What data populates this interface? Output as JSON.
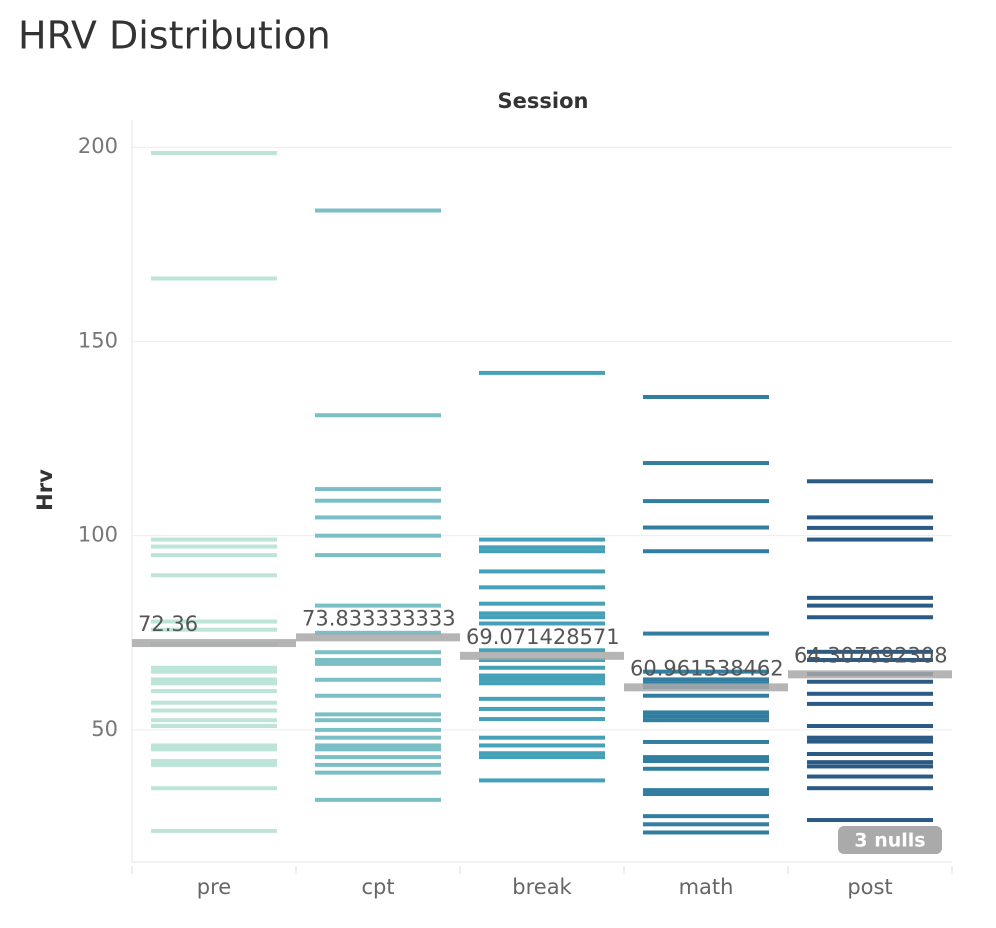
{
  "chart_data": {
    "type": "strip",
    "title": "HRV Distribution",
    "header": "Session",
    "ylabel": "Hrv",
    "categories": [
      "pre",
      "cpt",
      "break",
      "math",
      "post"
    ],
    "colors": [
      "#bde4d8",
      "#7bbfc6",
      "#45a1b8",
      "#327ea0",
      "#2b5a84"
    ],
    "values": [
      [
        198.5,
        166.2,
        99,
        97.2,
        95,
        89.8,
        77.9,
        75.8,
        72,
        66,
        65,
        63,
        62,
        60,
        57,
        55,
        52.5,
        51,
        46,
        45,
        42,
        41,
        35,
        24
      ],
      [
        183.7,
        131,
        112,
        109,
        104.7,
        100,
        95,
        82,
        75,
        70,
        68,
        67,
        62.9,
        58.8,
        54,
        52.5,
        50,
        48,
        46,
        45,
        43,
        41,
        39,
        32
      ],
      [
        141.9,
        99,
        97,
        96,
        90.8,
        86.7,
        82.5,
        80,
        79,
        77.4,
        70.5,
        68,
        66,
        64,
        63,
        62,
        58,
        55.4,
        52.8,
        48,
        46,
        44,
        43,
        37
      ],
      [
        135.7,
        118.7,
        108.9,
        102.1,
        96,
        74.8,
        65,
        63,
        62,
        61,
        58.8,
        54.5,
        53.5,
        52.5,
        46.9,
        43,
        42,
        40,
        34.5,
        33.5,
        27.8,
        25.7,
        23.6
      ],
      [
        114,
        104.7,
        102,
        99,
        84,
        82,
        79,
        70.1,
        68,
        64.4,
        62.4,
        59.3,
        56.7,
        51,
        48,
        47,
        43.8,
        41.7,
        40.6,
        38,
        35,
        26.8
      ]
    ],
    "means": [
      72.36,
      73.833333333,
      69.071428571,
      60.961538462,
      64.307692308
    ],
    "mean_labels": [
      "72.36",
      "73.833333333",
      "69.071428571",
      "60.961538462",
      "64.307692308"
    ],
    "annotation": "3 nulls",
    "ylim": [
      16,
      207
    ],
    "yticks": [
      50,
      100,
      150,
      200
    ],
    "grid": true
  }
}
